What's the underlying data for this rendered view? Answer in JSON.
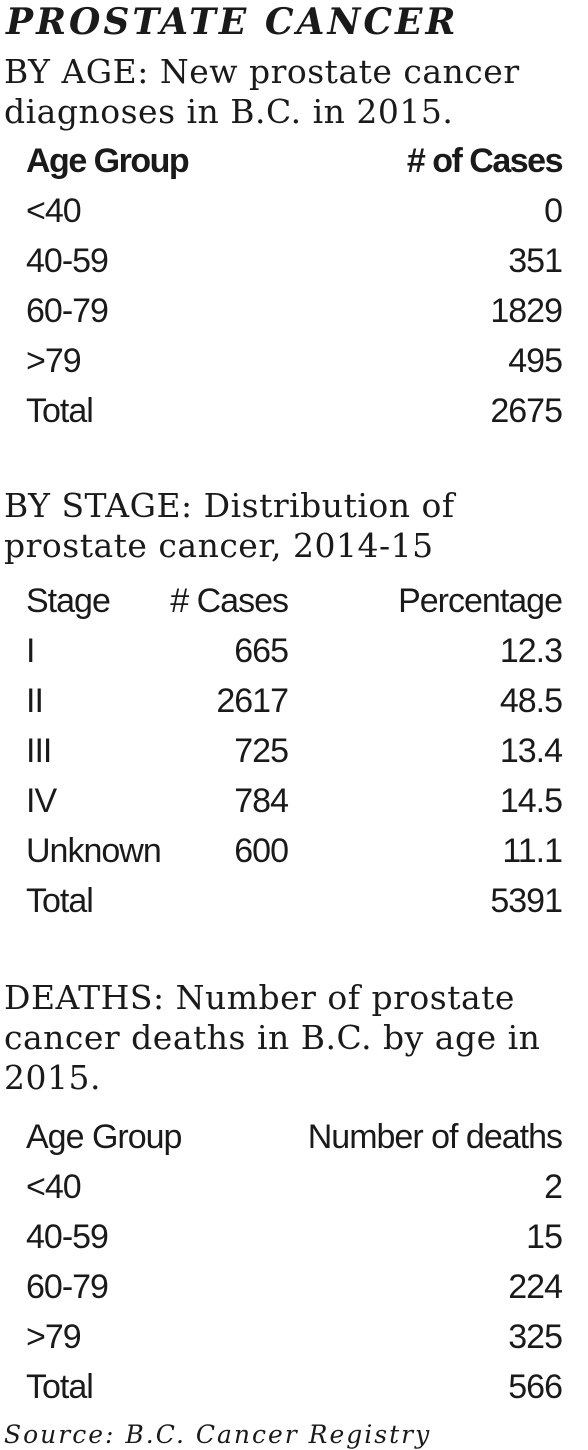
{
  "title": "PROSTATE CANCER",
  "by_age": {
    "heading": "BY AGE: New prostate cancer diagnoses in B.C. in 2015.",
    "columns": [
      "Age Group",
      "# of Cases"
    ],
    "rows": [
      {
        "group": "<40",
        "cases": "0"
      },
      {
        "group": "40-59",
        "cases": "351"
      },
      {
        "group": "60-79",
        "cases": "1829"
      },
      {
        "group": ">79",
        "cases": "495"
      },
      {
        "group": "Total",
        "cases": "2675"
      }
    ]
  },
  "by_stage": {
    "heading": "BY STAGE: Distribution of prostate cancer, 2014-15",
    "columns": [
      "Stage",
      "# Cases",
      "Percentage"
    ],
    "rows": [
      {
        "stage": "I",
        "cases": "665",
        "pct": "12.3"
      },
      {
        "stage": "II",
        "cases": "2617",
        "pct": "48.5"
      },
      {
        "stage": "III",
        "cases": "725",
        "pct": "13.4"
      },
      {
        "stage": "IV",
        "cases": "784",
        "pct": "14.5"
      },
      {
        "stage": "Unknown",
        "cases": "600",
        "pct": "11.1"
      },
      {
        "stage": "Total",
        "cases": "",
        "pct": "5391"
      }
    ]
  },
  "deaths": {
    "heading": "DEATHS: Number of prostate cancer deaths in B.C. by age in 2015.",
    "columns": [
      "Age Group",
      "Number of deaths"
    ],
    "rows": [
      {
        "group": "<40",
        "deaths": "2"
      },
      {
        "group": "40-59",
        "deaths": "15"
      },
      {
        "group": "60-79",
        "deaths": "224"
      },
      {
        "group": ">79",
        "deaths": "325"
      },
      {
        "group": "Total",
        "deaths": "566"
      }
    ]
  },
  "source": "Source: B.C. Cancer Registry"
}
